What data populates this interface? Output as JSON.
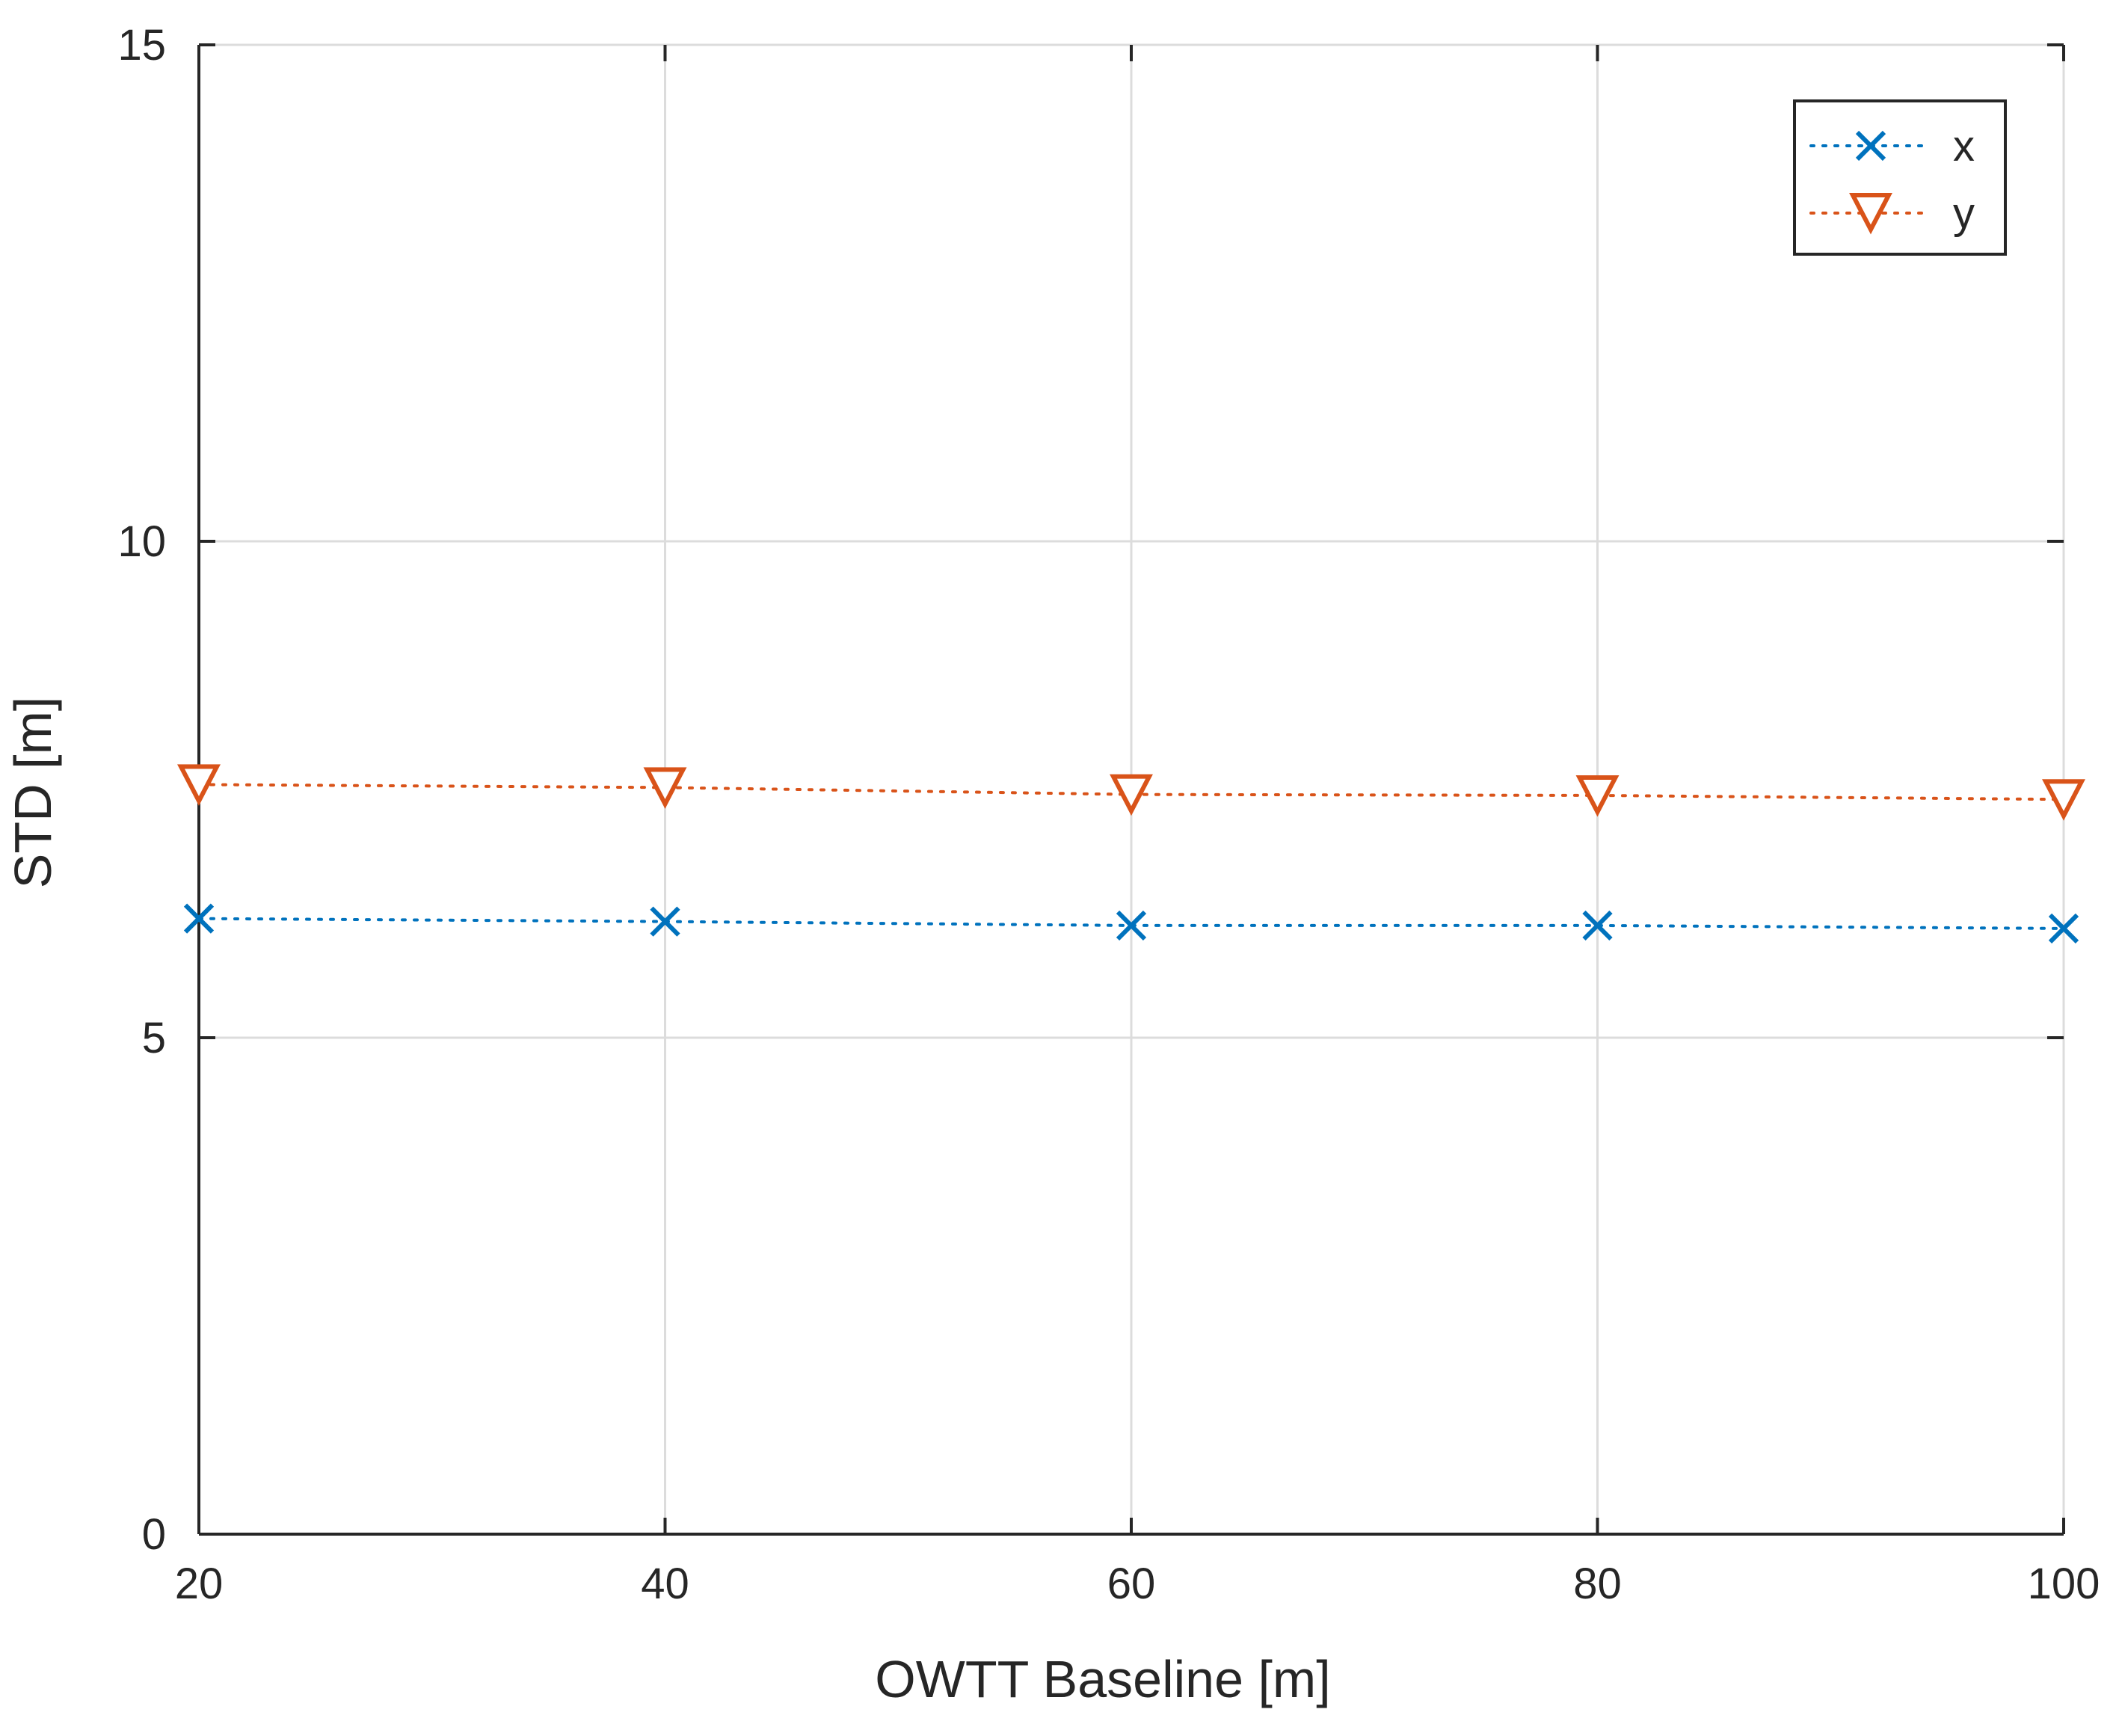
{
  "chart_data": {
    "type": "line",
    "title": "",
    "xlabel": "OWTT Baseline [m]",
    "ylabel": "STD [m]",
    "xlim": [
      20,
      100
    ],
    "ylim": [
      0,
      15
    ],
    "xticks": [
      20,
      40,
      60,
      80,
      100
    ],
    "yticks": [
      0,
      5,
      10,
      15
    ],
    "xtick_labels": [
      "20",
      "40",
      "60",
      "80",
      "100"
    ],
    "ytick_labels": [
      "0",
      "5",
      "10",
      "15"
    ],
    "grid": true,
    "legend_position": "top-right",
    "series": [
      {
        "name": "x",
        "marker": "x",
        "line_style": "dotted",
        "color": "#0072BD",
        "x": [
          20,
          40,
          60,
          80,
          100
        ],
        "y": [
          6.2,
          6.17,
          6.13,
          6.13,
          6.1
        ]
      },
      {
        "name": "y",
        "marker": "triangle-down",
        "line_style": "dotted",
        "color": "#D95319",
        "x": [
          20,
          40,
          60,
          80,
          100
        ],
        "y": [
          7.55,
          7.52,
          7.45,
          7.44,
          7.4
        ]
      }
    ]
  }
}
